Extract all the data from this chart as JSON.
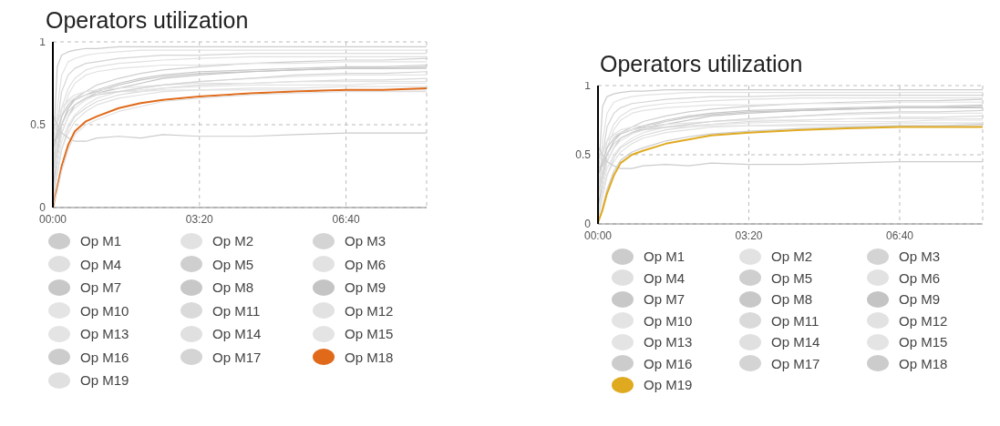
{
  "chart_data": [
    {
      "type": "line",
      "title": "Operators utilization",
      "legend": "bottom",
      "grid": true,
      "x": [
        0,
        0.1,
        0.2,
        0.35,
        0.5,
        0.75,
        1,
        1.5,
        2,
        2.5,
        3.33,
        4.5,
        5.5,
        6.67,
        7.5,
        8.5
      ],
      "xlim": [
        0,
        8.5
      ],
      "xticks": [
        {
          "value": 0,
          "label": "00:00"
        },
        {
          "value": 3.3333,
          "label": "03:20"
        },
        {
          "value": 6.6667,
          "label": "06:40"
        }
      ],
      "ylim": [
        0,
        1
      ],
      "yticks": [
        0,
        0.5,
        1
      ],
      "series": [
        {
          "name": "Op M1",
          "color": "#cccccc",
          "values": [
            0.3,
            0.85,
            0.92,
            0.94,
            0.95,
            0.96,
            0.96,
            0.97,
            0.97,
            0.97,
            0.97,
            0.97,
            0.97,
            0.97,
            0.97,
            0.97
          ]
        },
        {
          "name": "Op M2",
          "color": "#e2e2e2",
          "values": [
            0.2,
            0.6,
            0.8,
            0.88,
            0.9,
            0.92,
            0.93,
            0.94,
            0.95,
            0.95,
            0.95,
            0.95,
            0.95,
            0.95,
            0.95,
            0.95
          ]
        },
        {
          "name": "Op M3",
          "color": "#d4d4d4",
          "values": [
            0.15,
            0.5,
            0.7,
            0.8,
            0.84,
            0.87,
            0.88,
            0.9,
            0.91,
            0.92,
            0.92,
            0.93,
            0.93,
            0.93,
            0.93,
            0.93
          ]
        },
        {
          "name": "Op M4",
          "color": "#e0e0e0",
          "values": [
            0.1,
            0.4,
            0.6,
            0.72,
            0.78,
            0.83,
            0.85,
            0.87,
            0.88,
            0.89,
            0.9,
            0.91,
            0.91,
            0.91,
            0.91,
            0.91
          ]
        },
        {
          "name": "Op M5",
          "color": "#cfcfcf",
          "values": [
            0.05,
            0.3,
            0.5,
            0.6,
            0.66,
            0.7,
            0.74,
            0.78,
            0.81,
            0.83,
            0.85,
            0.87,
            0.88,
            0.89,
            0.89,
            0.9
          ]
        },
        {
          "name": "Op M6",
          "color": "#e2e2e2",
          "values": [
            0.25,
            0.35,
            0.55,
            0.68,
            0.75,
            0.8,
            0.82,
            0.84,
            0.85,
            0.86,
            0.86,
            0.87,
            0.87,
            0.88,
            0.88,
            0.88
          ]
        },
        {
          "name": "Op M7",
          "color": "#c8c8c8",
          "values": [
            0.35,
            0.45,
            0.55,
            0.62,
            0.66,
            0.68,
            0.71,
            0.75,
            0.78,
            0.8,
            0.82,
            0.83,
            0.84,
            0.85,
            0.85,
            0.86
          ]
        },
        {
          "name": "Op M8",
          "color": "#c8c8c8",
          "values": [
            0.4,
            0.42,
            0.5,
            0.6,
            0.65,
            0.68,
            0.7,
            0.74,
            0.77,
            0.79,
            0.81,
            0.82,
            0.83,
            0.84,
            0.84,
            0.85
          ]
        },
        {
          "name": "Op M9",
          "color": "#c4c4c4",
          "values": [
            0.12,
            0.3,
            0.45,
            0.55,
            0.62,
            0.66,
            0.69,
            0.72,
            0.75,
            0.78,
            0.8,
            0.82,
            0.83,
            0.84,
            0.84,
            0.84
          ]
        },
        {
          "name": "Op M10",
          "color": "#e4e4e4",
          "values": [
            0.08,
            0.25,
            0.4,
            0.5,
            0.56,
            0.62,
            0.66,
            0.7,
            0.72,
            0.74,
            0.76,
            0.78,
            0.79,
            0.8,
            0.8,
            0.8
          ]
        },
        {
          "name": "Op M11",
          "color": "#dadada",
          "values": [
            0.03,
            0.2,
            0.35,
            0.48,
            0.55,
            0.6,
            0.64,
            0.68,
            0.7,
            0.72,
            0.74,
            0.75,
            0.76,
            0.77,
            0.77,
            0.78
          ]
        },
        {
          "name": "Op M12",
          "color": "#e2e2e2",
          "values": [
            0.45,
            0.5,
            0.6,
            0.65,
            0.68,
            0.7,
            0.71,
            0.72,
            0.73,
            0.74,
            0.75,
            0.75,
            0.76,
            0.76,
            0.76,
            0.76
          ]
        },
        {
          "name": "Op M13",
          "color": "#e4e4e4",
          "values": [
            0.18,
            0.3,
            0.45,
            0.55,
            0.6,
            0.65,
            0.68,
            0.7,
            0.71,
            0.72,
            0.73,
            0.74,
            0.74,
            0.74,
            0.75,
            0.75
          ]
        },
        {
          "name": "Op M14",
          "color": "#e0e0e0",
          "values": [
            0.06,
            0.2,
            0.35,
            0.45,
            0.52,
            0.58,
            0.62,
            0.66,
            0.68,
            0.7,
            0.71,
            0.72,
            0.72,
            0.73,
            0.73,
            0.73
          ]
        },
        {
          "name": "Op M15",
          "color": "#e4e4e4",
          "values": [
            0.5,
            0.55,
            0.6,
            0.64,
            0.66,
            0.68,
            0.69,
            0.7,
            0.7,
            0.71,
            0.71,
            0.71,
            0.71,
            0.71,
            0.71,
            0.71
          ]
        },
        {
          "name": "Op M16",
          "color": "#cccccc",
          "values": [
            0.56,
            0.5,
            0.45,
            0.42,
            0.4,
            0.4,
            0.42,
            0.43,
            0.42,
            0.44,
            0.43,
            0.43,
            0.44,
            0.45,
            0.45,
            0.45
          ]
        },
        {
          "name": "Op M17",
          "color": "#d4d4d4",
          "values": [
            0.22,
            0.35,
            0.5,
            0.58,
            0.62,
            0.66,
            0.68,
            0.7,
            0.72,
            0.74,
            0.76,
            0.78,
            0.8,
            0.81,
            0.81,
            0.82
          ]
        },
        {
          "name": "Op M18",
          "color": "#e06a1a",
          "values": [
            0,
            0.12,
            0.25,
            0.38,
            0.46,
            0.52,
            0.55,
            0.6,
            0.63,
            0.65,
            0.67,
            0.69,
            0.7,
            0.71,
            0.71,
            0.72
          ]
        },
        {
          "name": "Op M19",
          "color": "#e0e0e0",
          "values": [
            0.01,
            0.1,
            0.22,
            0.35,
            0.44,
            0.5,
            0.53,
            0.58,
            0.61,
            0.64,
            0.66,
            0.68,
            0.69,
            0.7,
            0.7,
            0.7
          ]
        }
      ]
    },
    {
      "type": "line",
      "title": "Operators utilization",
      "legend": "bottom",
      "grid": true,
      "x": [
        0,
        0.1,
        0.2,
        0.35,
        0.5,
        0.75,
        1,
        1.5,
        2,
        2.5,
        3.33,
        4.5,
        5.5,
        6.67,
        7.5,
        8.5
      ],
      "xlim": [
        0,
        8.5
      ],
      "xticks": [
        {
          "value": 0,
          "label": "00:00"
        },
        {
          "value": 3.3333,
          "label": "03:20"
        },
        {
          "value": 6.6667,
          "label": "06:40"
        }
      ],
      "ylim": [
        0,
        1
      ],
      "yticks": [
        0,
        0.5,
        1
      ],
      "series": [
        {
          "name": "Op M1",
          "color": "#cccccc",
          "values": [
            0.3,
            0.85,
            0.92,
            0.94,
            0.95,
            0.96,
            0.96,
            0.97,
            0.97,
            0.97,
            0.97,
            0.97,
            0.97,
            0.97,
            0.97,
            0.97
          ]
        },
        {
          "name": "Op M2",
          "color": "#e2e2e2",
          "values": [
            0.2,
            0.6,
            0.8,
            0.88,
            0.9,
            0.92,
            0.93,
            0.94,
            0.95,
            0.95,
            0.95,
            0.95,
            0.95,
            0.95,
            0.95,
            0.95
          ]
        },
        {
          "name": "Op M3",
          "color": "#d4d4d4",
          "values": [
            0.15,
            0.5,
            0.7,
            0.8,
            0.84,
            0.87,
            0.88,
            0.9,
            0.91,
            0.92,
            0.92,
            0.93,
            0.93,
            0.93,
            0.93,
            0.93
          ]
        },
        {
          "name": "Op M4",
          "color": "#e0e0e0",
          "values": [
            0.1,
            0.4,
            0.6,
            0.72,
            0.78,
            0.83,
            0.85,
            0.87,
            0.88,
            0.89,
            0.9,
            0.91,
            0.91,
            0.91,
            0.91,
            0.91
          ]
        },
        {
          "name": "Op M5",
          "color": "#cfcfcf",
          "values": [
            0.05,
            0.3,
            0.5,
            0.6,
            0.66,
            0.7,
            0.74,
            0.78,
            0.81,
            0.83,
            0.85,
            0.87,
            0.88,
            0.89,
            0.89,
            0.9
          ]
        },
        {
          "name": "Op M6",
          "color": "#e2e2e2",
          "values": [
            0.25,
            0.35,
            0.55,
            0.68,
            0.75,
            0.8,
            0.82,
            0.84,
            0.85,
            0.86,
            0.86,
            0.87,
            0.87,
            0.88,
            0.88,
            0.88
          ]
        },
        {
          "name": "Op M7",
          "color": "#c8c8c8",
          "values": [
            0.35,
            0.45,
            0.55,
            0.62,
            0.66,
            0.68,
            0.71,
            0.75,
            0.78,
            0.8,
            0.82,
            0.83,
            0.84,
            0.85,
            0.85,
            0.86
          ]
        },
        {
          "name": "Op M8",
          "color": "#c8c8c8",
          "values": [
            0.4,
            0.42,
            0.5,
            0.6,
            0.65,
            0.68,
            0.7,
            0.74,
            0.77,
            0.79,
            0.81,
            0.82,
            0.83,
            0.84,
            0.84,
            0.85
          ]
        },
        {
          "name": "Op M9",
          "color": "#c4c4c4",
          "values": [
            0.12,
            0.3,
            0.45,
            0.55,
            0.62,
            0.66,
            0.69,
            0.72,
            0.75,
            0.78,
            0.8,
            0.82,
            0.83,
            0.84,
            0.84,
            0.84
          ]
        },
        {
          "name": "Op M10",
          "color": "#e4e4e4",
          "values": [
            0.08,
            0.25,
            0.4,
            0.5,
            0.56,
            0.62,
            0.66,
            0.7,
            0.72,
            0.74,
            0.76,
            0.78,
            0.79,
            0.8,
            0.8,
            0.8
          ]
        },
        {
          "name": "Op M11",
          "color": "#dadada",
          "values": [
            0.03,
            0.2,
            0.35,
            0.48,
            0.55,
            0.6,
            0.64,
            0.68,
            0.7,
            0.72,
            0.74,
            0.75,
            0.76,
            0.77,
            0.77,
            0.78
          ]
        },
        {
          "name": "Op M12",
          "color": "#e2e2e2",
          "values": [
            0.45,
            0.5,
            0.6,
            0.65,
            0.68,
            0.7,
            0.71,
            0.72,
            0.73,
            0.74,
            0.75,
            0.75,
            0.76,
            0.76,
            0.76,
            0.76
          ]
        },
        {
          "name": "Op M13",
          "color": "#e4e4e4",
          "values": [
            0.18,
            0.3,
            0.45,
            0.55,
            0.6,
            0.65,
            0.68,
            0.7,
            0.71,
            0.72,
            0.73,
            0.74,
            0.74,
            0.74,
            0.75,
            0.75
          ]
        },
        {
          "name": "Op M14",
          "color": "#e0e0e0",
          "values": [
            0.06,
            0.2,
            0.35,
            0.45,
            0.52,
            0.58,
            0.62,
            0.66,
            0.68,
            0.7,
            0.71,
            0.72,
            0.72,
            0.73,
            0.73,
            0.73
          ]
        },
        {
          "name": "Op M15",
          "color": "#e4e4e4",
          "values": [
            0.5,
            0.55,
            0.6,
            0.64,
            0.66,
            0.68,
            0.69,
            0.7,
            0.7,
            0.71,
            0.71,
            0.71,
            0.71,
            0.71,
            0.71,
            0.71
          ]
        },
        {
          "name": "Op M16",
          "color": "#cccccc",
          "values": [
            0.56,
            0.5,
            0.45,
            0.42,
            0.4,
            0.4,
            0.42,
            0.43,
            0.42,
            0.44,
            0.43,
            0.43,
            0.44,
            0.45,
            0.45,
            0.45
          ]
        },
        {
          "name": "Op M17",
          "color": "#d4d4d4",
          "values": [
            0.22,
            0.35,
            0.5,
            0.58,
            0.62,
            0.66,
            0.68,
            0.7,
            0.72,
            0.74,
            0.76,
            0.78,
            0.8,
            0.81,
            0.81,
            0.82
          ]
        },
        {
          "name": "Op M18",
          "color": "#cccccc",
          "values": [
            0,
            0.12,
            0.25,
            0.38,
            0.46,
            0.52,
            0.55,
            0.6,
            0.63,
            0.65,
            0.67,
            0.69,
            0.7,
            0.71,
            0.71,
            0.72
          ]
        },
        {
          "name": "Op M19",
          "color": "#e0aa20",
          "values": [
            0.01,
            0.1,
            0.22,
            0.35,
            0.44,
            0.5,
            0.53,
            0.58,
            0.61,
            0.64,
            0.66,
            0.68,
            0.69,
            0.7,
            0.7,
            0.7
          ]
        }
      ]
    }
  ]
}
